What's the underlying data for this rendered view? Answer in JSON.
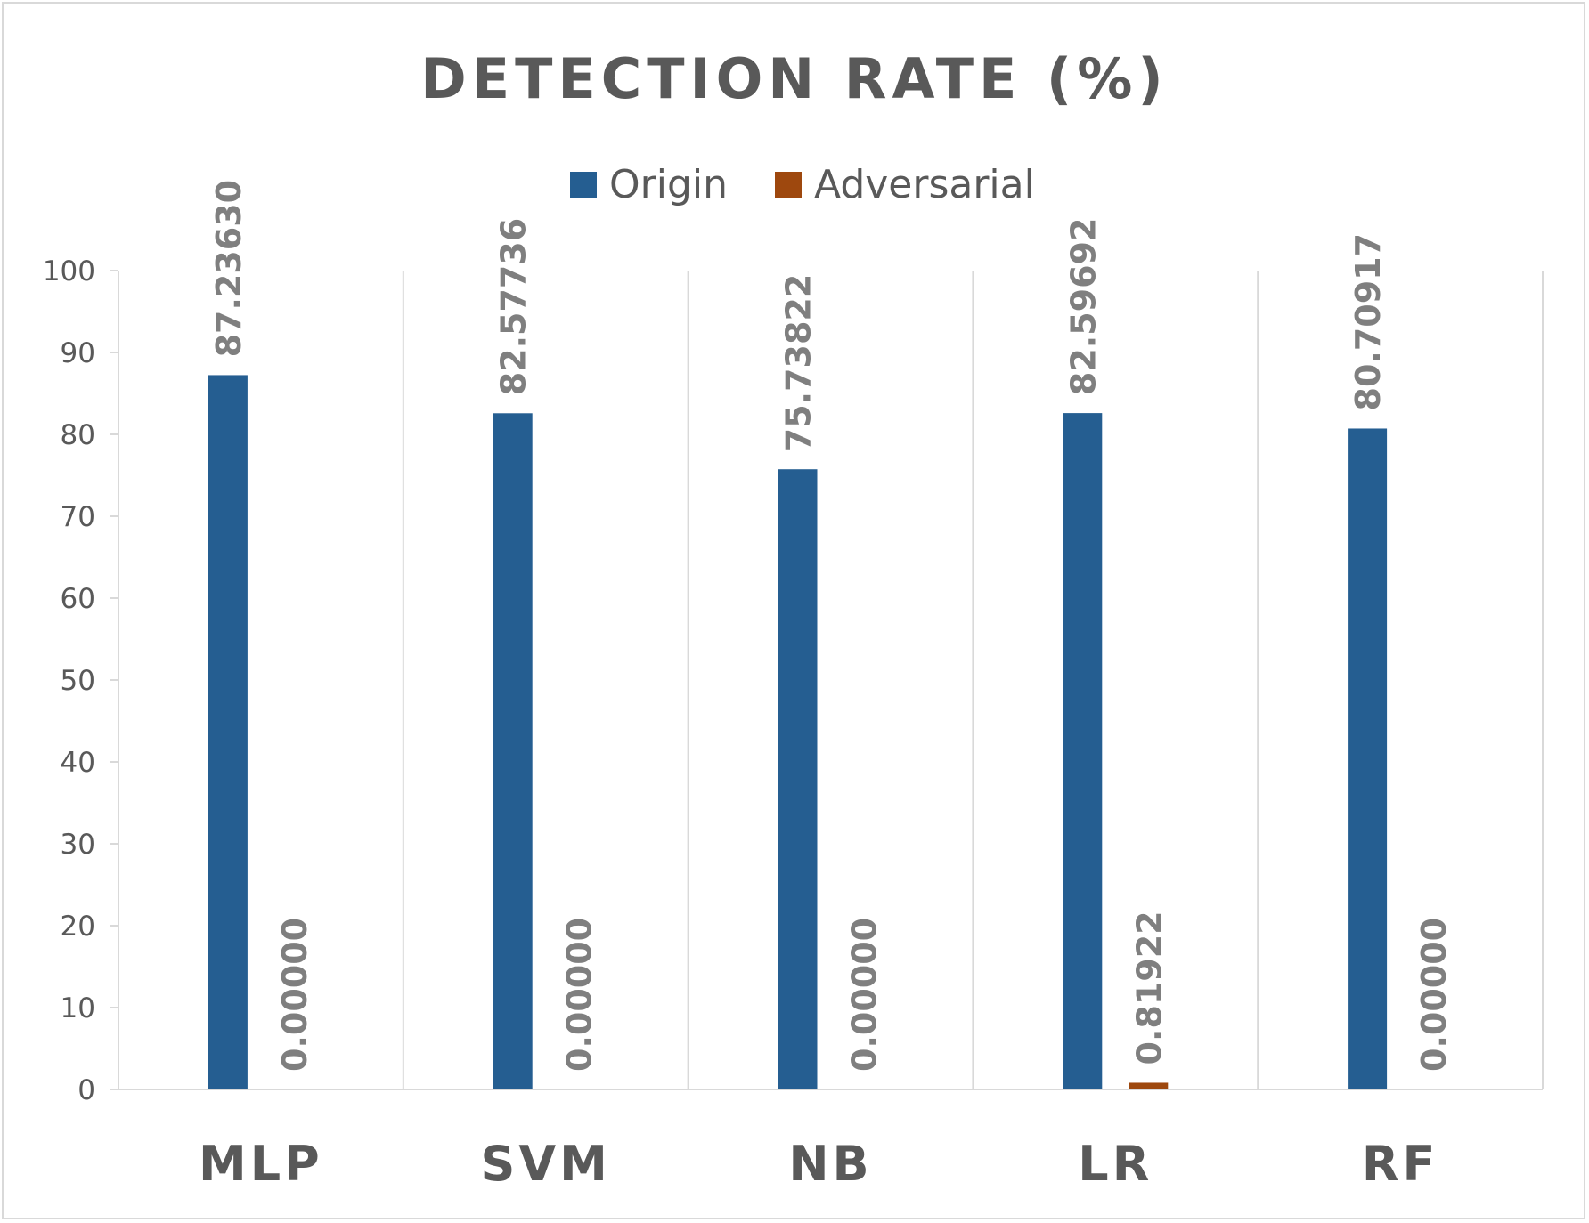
{
  "chart_data": {
    "type": "bar",
    "title": "DETECTION RATE (%)",
    "categories": [
      "MLP",
      "SVM",
      "NB",
      "LR",
      "RF"
    ],
    "series": [
      {
        "name": "Origin",
        "color": "#255e91",
        "values": [
          87.2363,
          82.57736,
          75.73822,
          82.59692,
          80.70917
        ],
        "labels": [
          "87.23630",
          "82.57736",
          "75.73822",
          "82.59692",
          "80.70917"
        ]
      },
      {
        "name": "Adversarial",
        "color": "#9e480e",
        "values": [
          0.0,
          0.0,
          0.0,
          0.81922,
          0.0
        ],
        "labels": [
          "0.00000",
          "0.00000",
          "0.00000",
          "0.81922",
          "0.00000"
        ]
      }
    ],
    "yticks": [
      "0",
      "10",
      "20",
      "30",
      "40",
      "50",
      "60",
      "70",
      "80",
      "90",
      "100"
    ],
    "ylim": [
      0,
      100
    ],
    "grid": "vertical-category-separators",
    "legend": "top-center",
    "xlabel": "",
    "ylabel": ""
  }
}
